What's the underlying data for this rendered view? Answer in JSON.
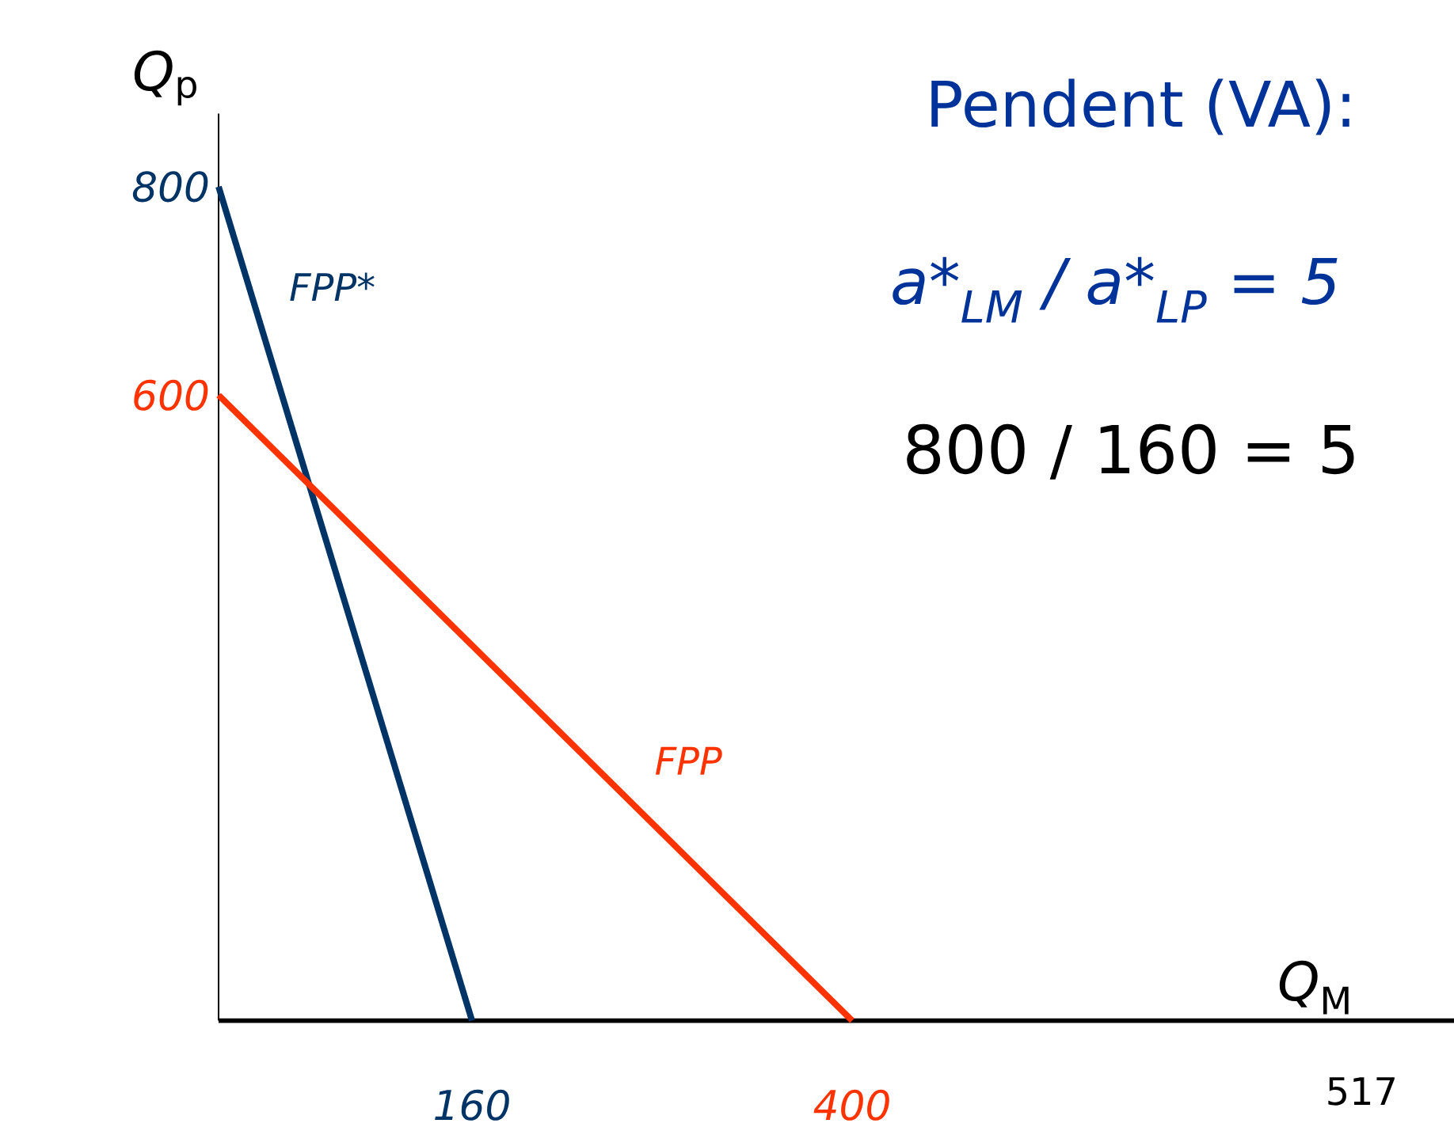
{
  "chart_data": {
    "type": "line",
    "title": "Pendent (VA):",
    "xlabel": "*Q*$_{M}$",
    "ylabel": "*Q*$_{p}$",
    "series": [
      {
        "name": "FPP*",
        "color": "#003366",
        "x": [
          0,
          160
        ],
        "values": [
          800,
          0
        ]
      },
      {
        "name": "FPP",
        "color": "#ff3300",
        "x": [
          0,
          400
        ],
        "values": [
          600,
          0
        ]
      }
    ],
    "xlim": [
      0,
      780
    ],
    "ylim": [
      0,
      870
    ],
    "xticks": [
      160,
      400
    ],
    "yticks": [
      600,
      800
    ],
    "annotations": [
      "a*$_{LM}$ / a*$_{LP}$ = 5",
      "800 / 160 = 5",
      "517"
    ],
    "grid": false,
    "marker": "none",
    "line_style": "solid"
  }
}
